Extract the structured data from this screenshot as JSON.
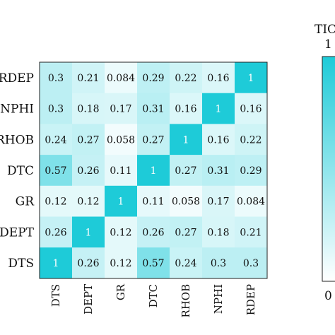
{
  "chart_data": {
    "type": "heatmap",
    "title": "",
    "colorbar": {
      "label": "TIC",
      "ticks": [
        "1",
        "0"
      ],
      "range": [
        0,
        1
      ],
      "color_low": "#ffffff",
      "color_high": "#1ecbd8"
    },
    "row_labels": [
      "RDEP",
      "NPHI",
      "RHOB",
      "DTC",
      "GR",
      "DEPT",
      "DTS"
    ],
    "col_labels": [
      "DTS",
      "DEPT",
      "GR",
      "DTC",
      "RHOB",
      "NPHI",
      "RDEP"
    ],
    "cells": [
      [
        "0.3",
        "0.21",
        "0.084",
        "0.29",
        "0.22",
        "0.16",
        "1"
      ],
      [
        "0.3",
        "0.18",
        "0.17",
        "0.31",
        "0.16",
        "1",
        "0.16"
      ],
      [
        "0.24",
        "0.27",
        "0.058",
        "0.27",
        "1",
        "0.16",
        "0.22"
      ],
      [
        "0.57",
        "0.26",
        "0.11",
        "1",
        "0.27",
        "0.31",
        "0.29"
      ],
      [
        "0.12",
        "0.12",
        "1",
        "0.11",
        "0.058",
        "0.17",
        "0.084"
      ],
      [
        "0.26",
        "1",
        "0.12",
        "0.26",
        "0.27",
        "0.18",
        "0.21"
      ],
      [
        "1",
        "0.26",
        "0.12",
        "0.57",
        "0.24",
        "0.3",
        "0.3"
      ]
    ]
  }
}
